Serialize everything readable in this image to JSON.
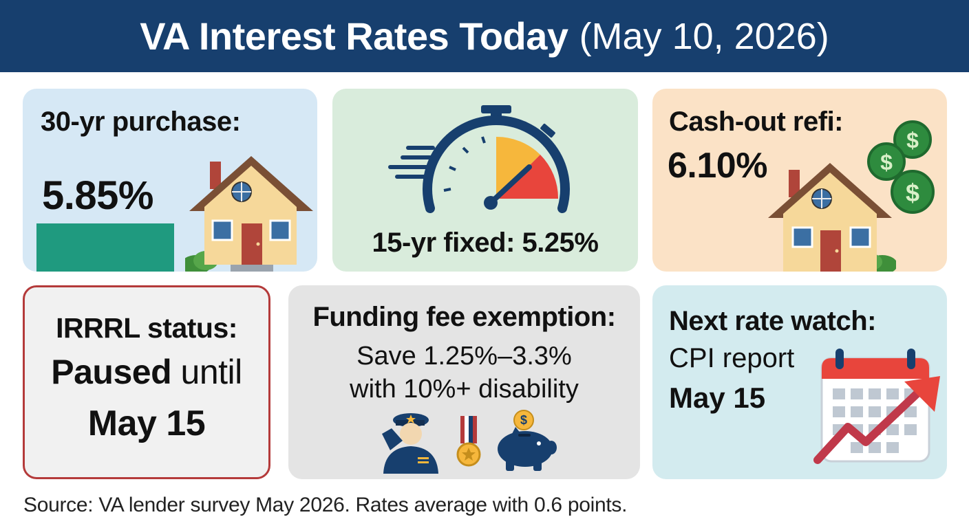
{
  "header": {
    "title_main": "VA Interest Rates Today",
    "title_date": "(May 10, 2026)"
  },
  "cards": {
    "purchase": {
      "label": "30-yr purchase:",
      "rate": "5.85%"
    },
    "fixed15": {
      "label": "15-yr fixed: 5.25%"
    },
    "cashout": {
      "label": "Cash-out refi:",
      "rate": "6.10%"
    },
    "irrrl": {
      "label": "IRRRL status:",
      "status_bold": "Paused",
      "status_rest": "until",
      "date": "May 15"
    },
    "funding": {
      "title": "Funding fee exemption:",
      "line1": "Save 1.25%–3.3%",
      "line2": "with 10%+ disability"
    },
    "watch": {
      "title": "Next rate watch:",
      "line1": "CPI report",
      "date": "May 15"
    }
  },
  "footer": {
    "source": "Source: VA lender survey May 2026. Rates average with 0.6 points."
  },
  "colors": {
    "header_bg": "#173f6e",
    "purchase_bg": "#d6e8f5",
    "fixed_bg": "#d9ecdc",
    "cashout_bg": "#fbe2c6",
    "irrrl_border": "#b43a3a",
    "funding_bg": "#e4e4e4",
    "watch_bg": "#d3ebef",
    "accent_green": "#1f9a7f",
    "gauge_red": "#e8453c",
    "gauge_yellow": "#f6b73c",
    "calendar_red": "#e8453c"
  },
  "icons": [
    "house-icon",
    "stopwatch-gauge-icon",
    "dollar-coins-icon",
    "saluting-veteran-icon",
    "medal-icon",
    "piggy-bank-icon",
    "calendar-icon",
    "trend-arrow-icon"
  ]
}
